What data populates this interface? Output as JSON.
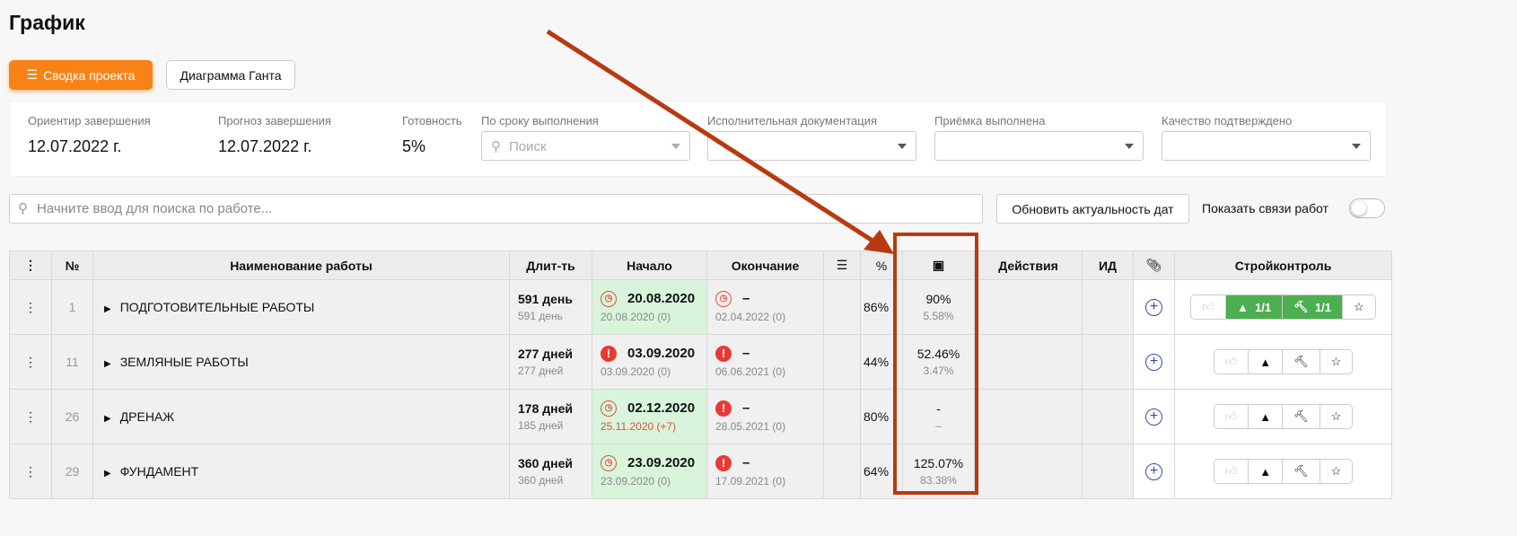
{
  "page_title": "График",
  "tabs": [
    {
      "label": "Сводка проекта",
      "active": true
    },
    {
      "label": "Диаграмма Ганта",
      "active": false
    }
  ],
  "summary": {
    "target_label": "Ориентир завершения",
    "target_value": "12.07.2022 г.",
    "forecast_label": "Прогноз завершения",
    "forecast_value": "12.07.2022 г.",
    "ready_label": "Готовность",
    "ready_value": "5%",
    "deadline_label": "По сроку выполнения",
    "deadline_placeholder": "Поиск",
    "docs_label": "Исполнительная документация",
    "acceptance_label": "Приёмка выполнена",
    "quality_label": "Качество подтверждено"
  },
  "search_placeholder": "Начните ввод для поиска по работе...",
  "refresh_label": "Обновить актуальность дат",
  "show_links_label": "Показать связи работ",
  "show_links_on": false,
  "columns": {
    "menu": "⋮",
    "num": "№",
    "name": "Наименование работы",
    "dur": "Длит-ть",
    "start": "Начало",
    "end": "Окончание",
    "checklist": "☰",
    "pct": "%",
    "money": "money-icon",
    "actions": "Действия",
    "id": "ИД",
    "attach": "paperclip-icon",
    "control": "Стройконтроль"
  },
  "rows": [
    {
      "num": "1",
      "name": "ПОДГОТОВИТЕЛЬНЫЕ РАБОТЫ",
      "dur": "591 день",
      "dur_sub": "591 день",
      "start": "20.08.2020",
      "start_sub": "20.08.2020 (0)",
      "start_icon": "clock",
      "end": "–",
      "end_sub": "02.04.2022 (0)",
      "end_icon": "clock",
      "pct": "86%",
      "money": "90%",
      "money_sub": "5.58%",
      "warn": "1/1",
      "hammer": "1/1"
    },
    {
      "num": "11",
      "name": "ЗЕМЛЯНЫЕ РАБОТЫ",
      "dur": "277 дней",
      "dur_sub": "277 дней",
      "start": "03.09.2020",
      "start_sub": "03.09.2020 (0)",
      "start_icon": "alert",
      "end": "–",
      "end_sub": "06.06.2021 (0)",
      "end_icon": "alert",
      "pct": "44%",
      "money": "52.46%",
      "money_sub": "3.47%",
      "warn": "",
      "hammer": ""
    },
    {
      "num": "26",
      "name": "ДРЕНАЖ",
      "dur": "178 дней",
      "dur_sub": "185 дней",
      "start": "02.12.2020",
      "start_sub": "25.11.2020 (+7)",
      "start_icon": "clock",
      "end": "–",
      "end_sub": "28.05.2021 (0)",
      "end_icon": "alert",
      "pct": "80%",
      "money": "-",
      "money_sub": "–",
      "warn": "",
      "hammer": ""
    },
    {
      "num": "29",
      "name": "ФУНДАМЕНТ",
      "dur": "360 дней",
      "dur_sub": "360 дней",
      "start": "23.09.2020",
      "start_sub": "23.09.2020 (0)",
      "start_icon": "clock",
      "end": "–",
      "end_sub": "17.09.2021 (0)",
      "end_icon": "alert",
      "pct": "64%",
      "money": "125.07%",
      "money_sub": "83.38%",
      "warn": "",
      "hammer": ""
    }
  ],
  "colors": {
    "accent": "#f98216",
    "annotation": "#b83a10",
    "green": "#4caf50",
    "alert": "#e83a35"
  }
}
